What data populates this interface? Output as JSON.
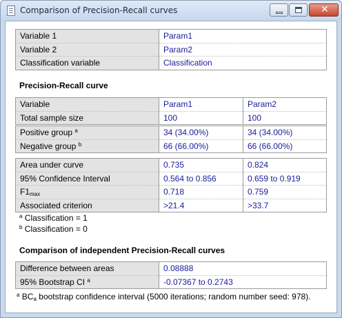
{
  "window": {
    "title": "Comparison of Precision-Recall curves"
  },
  "vars": [
    {
      "label": "Variable 1",
      "value": "Param1"
    },
    {
      "label": "Variable 2",
      "value": "Param2"
    },
    {
      "label": "Classification variable",
      "value": "Classification"
    }
  ],
  "pr_heading": "Precision-Recall curve",
  "summary": [
    {
      "label": "Variable",
      "v1": "Param1",
      "v2": "Param2"
    },
    {
      "label": "Total sample size",
      "v1": "100",
      "v2": "100"
    }
  ],
  "groups": [
    {
      "label": "Positive group",
      "sup": "a",
      "v1": "34 (34.00%)",
      "v2": "34 (34.00%)"
    },
    {
      "label": "Negative group",
      "sup": "b",
      "v1": "66 (66.00%)",
      "v2": "66 (66.00%)"
    }
  ],
  "metrics": [
    {
      "label": "Area under curve",
      "v1": "0.735",
      "v2": "0.824"
    },
    {
      "label": "95% Confidence Interval",
      "v1": "0.564 to 0.856",
      "v2": "0.659 to 0.919"
    },
    {
      "label": "F1",
      "sub": "max",
      "v1": "0.718",
      "v2": "0.759"
    },
    {
      "label": "Associated criterion",
      "v1": ">21.4",
      "v2": ">33.7"
    }
  ],
  "notes": [
    {
      "sup": "a",
      "text": "Classification = 1"
    },
    {
      "sup": "b",
      "text": "Classification = 0"
    }
  ],
  "comp_heading": "Comparison of independent Precision-Recall curves",
  "comparison": [
    {
      "label": "Difference between areas",
      "sup": "",
      "value": "0.08888"
    },
    {
      "label": "95% Bootstrap CI",
      "sup": "a",
      "value": "-0.07367 to 0.2743"
    }
  ],
  "bottom_note": {
    "sup": "a",
    "pre": "BC",
    "sub": "a",
    "text": "bootstrap confidence interval (5000 iterations; random number seed: 978)."
  }
}
